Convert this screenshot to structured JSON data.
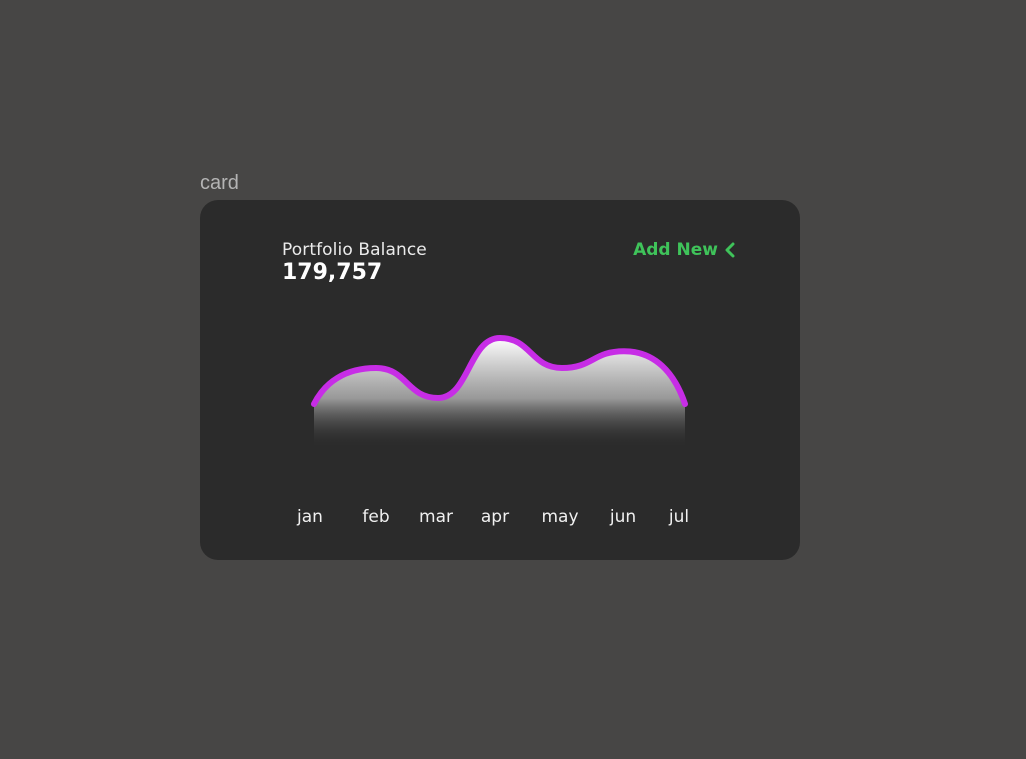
{
  "frame": {
    "label": "card"
  },
  "card": {
    "title": "Portfolio Balance",
    "value": "179,757",
    "action_label": "Add New",
    "action_icon": "chevron-left-icon",
    "accent_color": "#3fc35a"
  },
  "chart_data": {
    "type": "area",
    "title": "",
    "xlabel": "",
    "ylabel": "",
    "categories": [
      "jan",
      "feb",
      "mar",
      "apr",
      "may",
      "jun",
      "jul"
    ],
    "values": [
      30,
      60,
      35,
      85,
      60,
      74,
      30
    ],
    "ylim": [
      0,
      100
    ],
    "grid": false,
    "line_color": "#c72de6",
    "fill": "white-to-transparent gradient"
  }
}
